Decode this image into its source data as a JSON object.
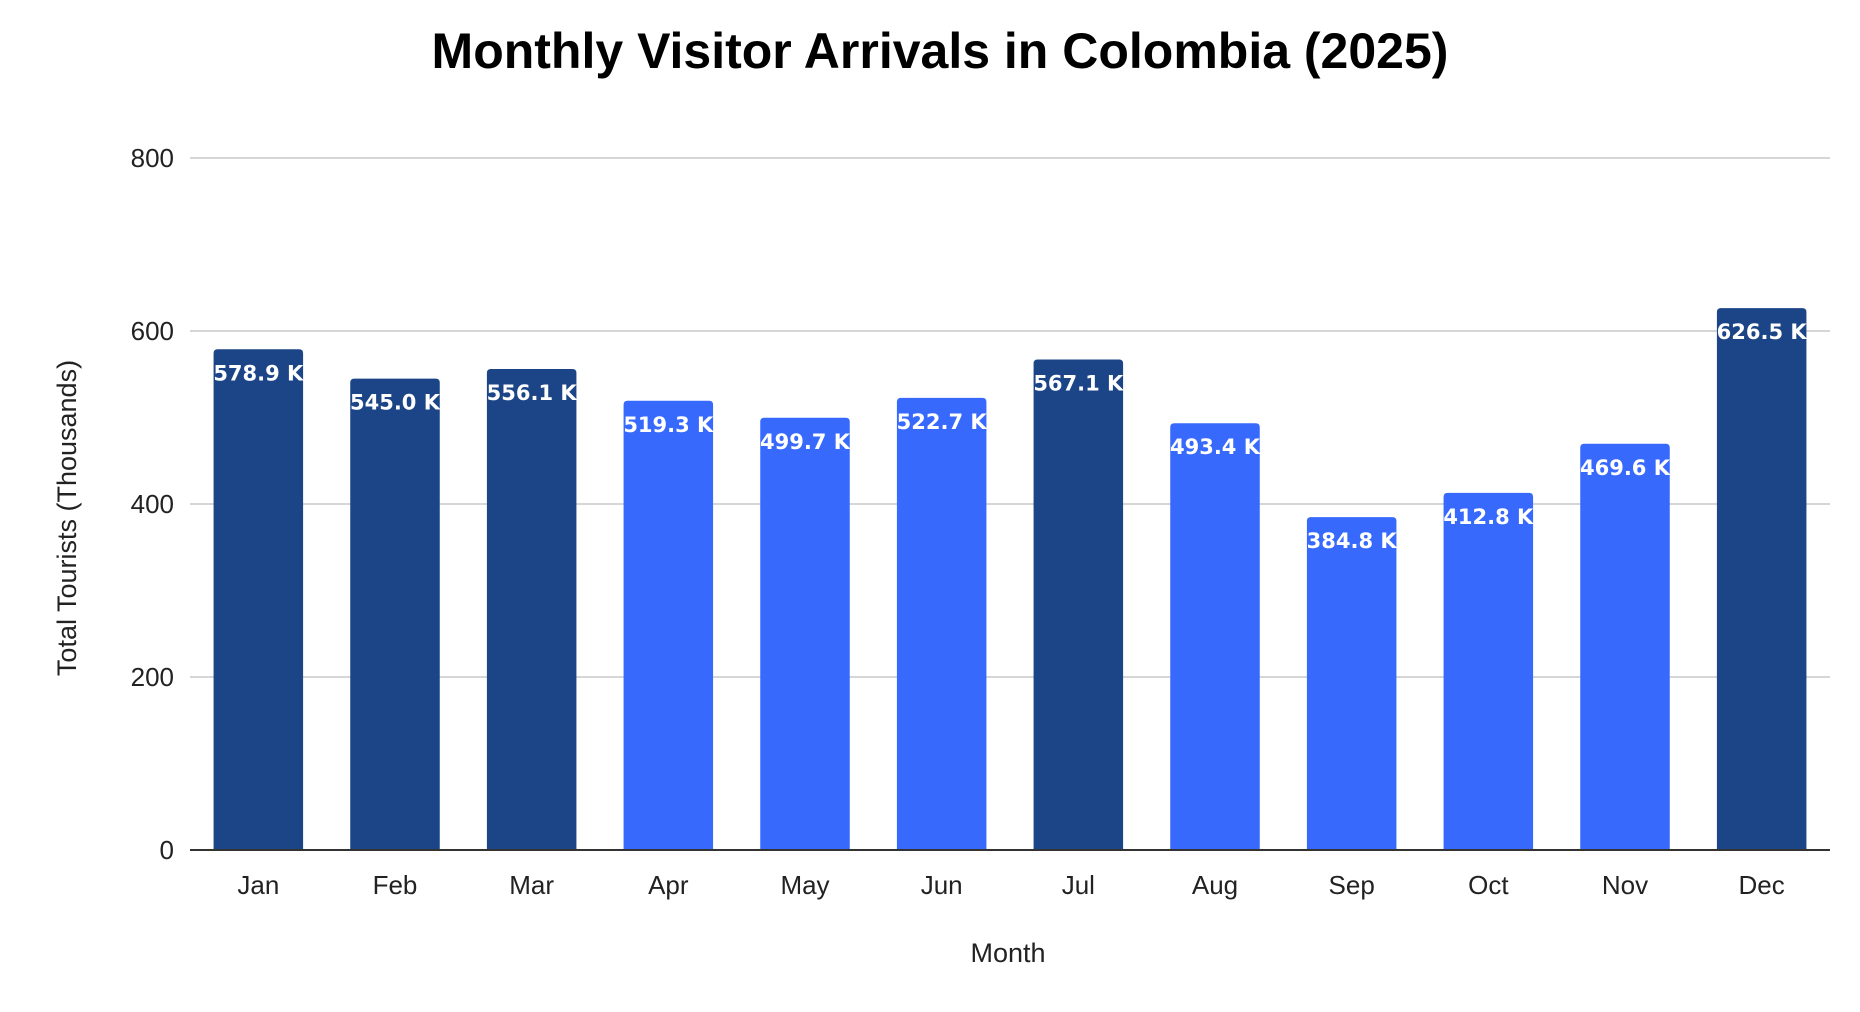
{
  "chart_data": {
    "type": "bar",
    "title": "Monthly Visitor Arrivals in Colombia (2025)",
    "xlabel": "Month",
    "ylabel": "Total Tourists (Thousands)",
    "categories": [
      "Jan",
      "Feb",
      "Mar",
      "Apr",
      "May",
      "Jun",
      "Jul",
      "Aug",
      "Sep",
      "Oct",
      "Nov",
      "Dec"
    ],
    "values": [
      578.9,
      545.0,
      556.1,
      519.3,
      499.7,
      522.7,
      567.1,
      493.4,
      384.8,
      412.8,
      469.6,
      626.5
    ],
    "data_labels": [
      "578.9 K",
      "545.0 K",
      "556.1 K",
      "519.3 K",
      "499.7 K",
      "522.7 K",
      "567.1 K",
      "493.4 K",
      "384.8 K",
      "412.8 K",
      "469.6 K",
      "626.5 K"
    ],
    "ylim": [
      0,
      800
    ],
    "yticks": [
      0,
      200,
      400,
      600,
      800
    ],
    "ytick_labels": [
      "0",
      "200",
      "400",
      "600",
      "800"
    ],
    "grid": true,
    "legend": "none",
    "highlighted": [
      true,
      true,
      true,
      false,
      false,
      false,
      true,
      false,
      false,
      false,
      false,
      true
    ],
    "colors": {
      "highlight": "#1c4587",
      "default": "#3869fd",
      "label": "#ffffff",
      "grid": "#c8c8c8",
      "axis": "#333333"
    }
  }
}
